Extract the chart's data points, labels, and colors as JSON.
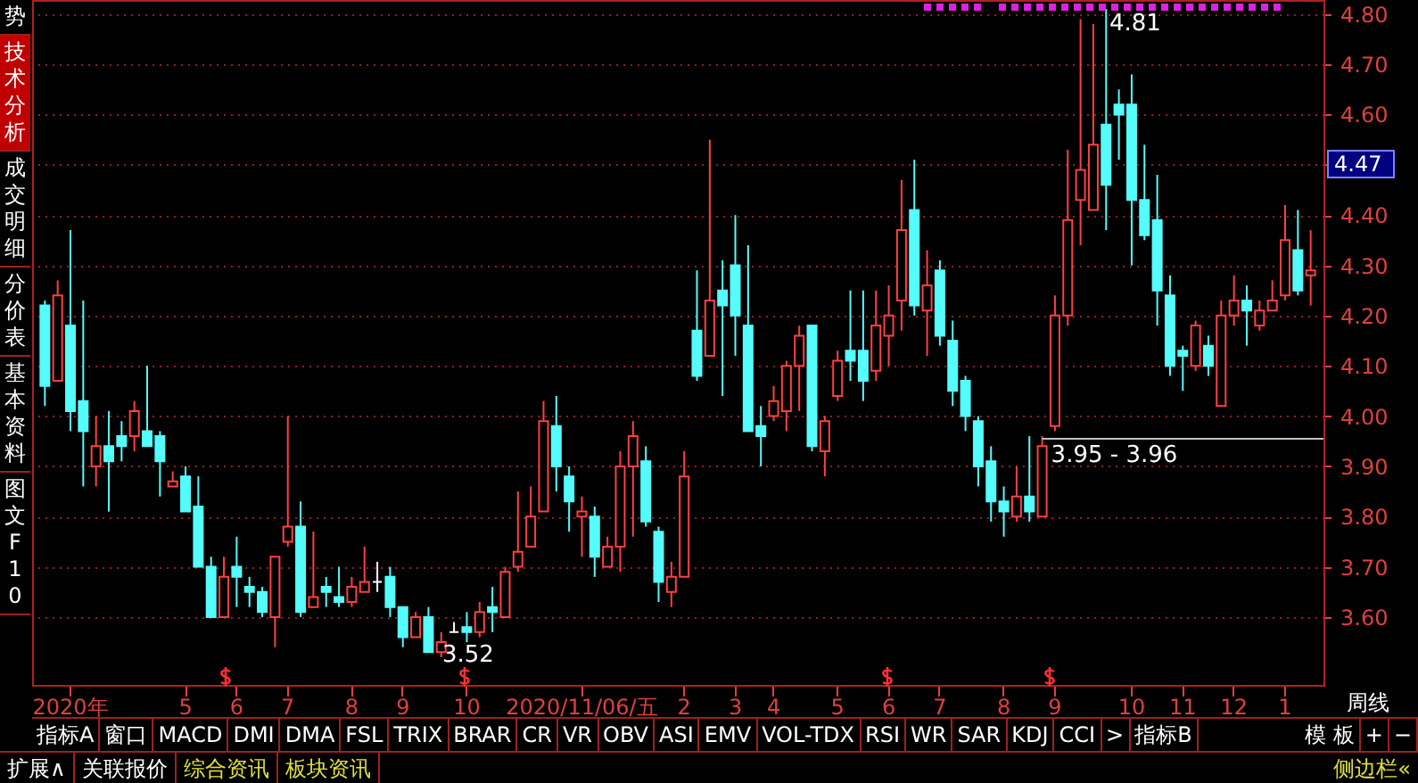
{
  "chart_data": {
    "type": "candlestick",
    "categories": [
      null,
      null,
      "2020年",
      null,
      null,
      null,
      null,
      null,
      null,
      null,
      null,
      "5",
      null,
      null,
      null,
      "6",
      null,
      null,
      null,
      "7",
      null,
      null,
      null,
      null,
      "8",
      null,
      null,
      null,
      "9",
      null,
      null,
      null,
      null,
      "10",
      null,
      null,
      null,
      null,
      null,
      null,
      null,
      null,
      "2020/11/06/五",
      null,
      null,
      null,
      null,
      null,
      null,
      null,
      "2",
      null,
      null,
      null,
      "3",
      null,
      null,
      "4",
      null,
      null,
      null,
      null,
      "5",
      null,
      null,
      null,
      "6",
      null,
      null,
      null,
      "7",
      null,
      null,
      null,
      null,
      "8",
      null,
      null,
      null,
      "9",
      null,
      null,
      null,
      null,
      null,
      "10",
      null,
      null,
      null,
      "11",
      null,
      null,
      null,
      "12",
      null,
      null,
      null,
      "1",
      null,
      null
    ],
    "ohlc": [
      [
        4.22,
        4.23,
        4.02,
        4.06
      ],
      [
        4.07,
        4.27,
        4.07,
        4.24
      ],
      [
        4.18,
        4.37,
        3.97,
        4.01
      ],
      [
        4.03,
        4.23,
        3.86,
        3.97
      ],
      [
        3.9,
        4.0,
        3.86,
        3.94
      ],
      [
        3.94,
        4.01,
        3.81,
        3.91
      ],
      [
        3.96,
        3.99,
        3.91,
        3.94
      ],
      [
        3.96,
        4.03,
        3.93,
        4.01
      ],
      [
        3.97,
        4.1,
        3.94,
        3.94
      ],
      [
        3.96,
        3.97,
        3.84,
        3.91
      ],
      [
        3.86,
        3.89,
        3.86,
        3.87
      ],
      [
        3.88,
        3.9,
        3.81,
        3.81
      ],
      [
        3.82,
        3.88,
        3.7,
        3.7
      ],
      [
        3.7,
        3.72,
        3.6,
        3.6
      ],
      [
        3.6,
        3.72,
        3.6,
        3.68
      ],
      [
        3.7,
        3.76,
        3.62,
        3.68
      ],
      [
        3.66,
        3.68,
        3.62,
        3.65
      ],
      [
        3.65,
        3.66,
        3.6,
        3.61
      ],
      [
        3.6,
        3.72,
        3.54,
        3.72
      ],
      [
        3.75,
        4.0,
        3.74,
        3.78
      ],
      [
        3.78,
        3.83,
        3.6,
        3.61
      ],
      [
        3.62,
        3.77,
        3.62,
        3.64
      ],
      [
        3.66,
        3.68,
        3.62,
        3.65
      ],
      [
        3.64,
        3.7,
        3.62,
        3.63
      ],
      [
        3.63,
        3.68,
        3.62,
        3.66
      ],
      [
        3.65,
        3.74,
        3.65,
        3.67
      ],
      [
        3.67,
        3.71,
        3.65,
        3.67
      ],
      [
        3.68,
        3.7,
        3.6,
        3.62
      ],
      [
        3.62,
        3.62,
        3.54,
        3.56
      ],
      [
        3.56,
        3.61,
        3.56,
        3.6
      ],
      [
        3.6,
        3.62,
        3.53,
        3.53
      ],
      [
        3.53,
        3.57,
        3.52,
        3.55
      ],
      [
        3.57,
        3.59,
        3.57,
        3.57
      ],
      [
        3.58,
        3.61,
        3.55,
        3.57
      ],
      [
        3.57,
        3.63,
        3.56,
        3.61
      ],
      [
        3.62,
        3.66,
        3.57,
        3.61
      ],
      [
        3.6,
        3.7,
        3.6,
        3.69
      ],
      [
        3.7,
        3.85,
        3.69,
        3.73
      ],
      [
        3.74,
        3.86,
        3.74,
        3.8
      ],
      [
        3.81,
        4.03,
        3.81,
        3.99
      ],
      [
        3.98,
        4.04,
        3.85,
        3.9
      ],
      [
        3.88,
        3.9,
        3.77,
        3.83
      ],
      [
        3.8,
        3.84,
        3.72,
        3.81
      ],
      [
        3.8,
        3.82,
        3.68,
        3.72
      ],
      [
        3.7,
        3.76,
        3.7,
        3.74
      ],
      [
        3.74,
        3.93,
        3.69,
        3.9
      ],
      [
        3.9,
        3.99,
        3.76,
        3.96
      ],
      [
        3.91,
        3.94,
        3.78,
        3.79
      ],
      [
        3.77,
        3.78,
        3.63,
        3.67
      ],
      [
        3.65,
        3.71,
        3.62,
        3.68
      ],
      [
        3.68,
        3.93,
        3.68,
        3.88
      ],
      [
        4.17,
        4.29,
        4.07,
        4.08
      ],
      [
        4.12,
        4.55,
        4.12,
        4.23
      ],
      [
        4.25,
        4.31,
        4.04,
        4.22
      ],
      [
        4.3,
        4.4,
        4.12,
        4.2
      ],
      [
        4.18,
        4.34,
        3.97,
        3.97
      ],
      [
        3.98,
        4.02,
        3.9,
        3.96
      ],
      [
        4.0,
        4.06,
        3.99,
        4.03
      ],
      [
        4.01,
        4.11,
        3.97,
        4.1
      ],
      [
        4.1,
        4.18,
        4.01,
        4.16
      ],
      [
        4.18,
        4.18,
        3.93,
        3.94
      ],
      [
        3.93,
        4.0,
        3.88,
        3.99
      ],
      [
        4.04,
        4.13,
        4.03,
        4.11
      ],
      [
        4.13,
        4.25,
        4.07,
        4.11
      ],
      [
        4.13,
        4.25,
        4.03,
        4.07
      ],
      [
        4.09,
        4.25,
        4.07,
        4.18
      ],
      [
        4.16,
        4.26,
        4.1,
        4.2
      ],
      [
        4.23,
        4.47,
        4.17,
        4.37
      ],
      [
        4.41,
        4.51,
        4.2,
        4.22
      ],
      [
        4.21,
        4.33,
        4.12,
        4.26
      ],
      [
        4.29,
        4.31,
        4.14,
        4.16
      ],
      [
        4.15,
        4.19,
        4.02,
        4.05
      ],
      [
        4.07,
        4.08,
        3.97,
        4.0
      ],
      [
        3.99,
        4.0,
        3.86,
        3.9
      ],
      [
        3.91,
        3.94,
        3.79,
        3.83
      ],
      [
        3.83,
        3.86,
        3.76,
        3.81
      ],
      [
        3.8,
        3.9,
        3.79,
        3.84
      ],
      [
        3.84,
        3.96,
        3.79,
        3.81
      ],
      [
        3.8,
        3.96,
        3.8,
        3.94
      ],
      [
        3.98,
        4.24,
        3.97,
        4.2
      ],
      [
        4.2,
        4.53,
        4.18,
        4.39
      ],
      [
        4.43,
        4.79,
        4.34,
        4.49
      ],
      [
        4.41,
        4.78,
        4.41,
        4.54
      ],
      [
        4.58,
        4.81,
        4.37,
        4.46
      ],
      [
        4.62,
        4.65,
        4.51,
        4.6
      ],
      [
        4.62,
        4.68,
        4.3,
        4.43
      ],
      [
        4.43,
        4.54,
        4.35,
        4.36
      ],
      [
        4.39,
        4.48,
        4.18,
        4.25
      ],
      [
        4.24,
        4.28,
        4.08,
        4.1
      ],
      [
        4.13,
        4.14,
        4.05,
        4.12
      ],
      [
        4.1,
        4.19,
        4.09,
        4.18
      ],
      [
        4.14,
        4.16,
        4.08,
        4.1
      ],
      [
        4.02,
        4.23,
        4.02,
        4.2
      ],
      [
        4.2,
        4.28,
        4.18,
        4.23
      ],
      [
        4.23,
        4.26,
        4.14,
        4.21
      ],
      [
        4.18,
        4.23,
        4.17,
        4.21
      ],
      [
        4.21,
        4.27,
        4.21,
        4.23
      ],
      [
        4.24,
        4.42,
        4.23,
        4.35
      ],
      [
        4.33,
        4.41,
        4.24,
        4.25
      ],
      [
        4.28,
        4.37,
        4.22,
        4.29
      ]
    ],
    "colors": [
      "#54fcfc",
      "#ff4040",
      "#54fcfc",
      "#54fcfc",
      "#ff4040",
      "#54fcfc",
      "#54fcfc",
      "#ff4040",
      "#54fcfc",
      "#54fcfc",
      "#ff4040",
      "#54fcfc",
      "#54fcfc",
      "#54fcfc",
      "#ff4040",
      "#54fcfc",
      "#54fcfc",
      "#54fcfc",
      "#ff4040",
      "#ff4040",
      "#54fcfc",
      "#ff4040",
      "#54fcfc",
      "#54fcfc",
      "#ff4040",
      "#ff4040",
      "#ffffff",
      "#54fcfc",
      "#54fcfc",
      "#ff4040",
      "#54fcfc",
      "#ff4040",
      "#ffffff",
      "#54fcfc",
      "#ff4040",
      "#54fcfc",
      "#ff4040",
      "#ff4040",
      "#ff4040",
      "#ff4040",
      "#54fcfc",
      "#54fcfc",
      "#ff4040",
      "#54fcfc",
      "#ff4040",
      "#ff4040",
      "#ff4040",
      "#54fcfc",
      "#54fcfc",
      "#ff4040",
      "#ff4040",
      "#54fcfc",
      "#ff4040",
      "#54fcfc",
      "#54fcfc",
      "#54fcfc",
      "#54fcfc",
      "#ff4040",
      "#ff4040",
      "#ff4040",
      "#54fcfc",
      "#ff4040",
      "#ff4040",
      "#54fcfc",
      "#54fcfc",
      "#ff4040",
      "#ff4040",
      "#ff4040",
      "#54fcfc",
      "#ff4040",
      "#54fcfc",
      "#54fcfc",
      "#54fcfc",
      "#54fcfc",
      "#54fcfc",
      "#54fcfc",
      "#ff4040",
      "#54fcfc",
      "#ff4040",
      "#ff4040",
      "#ff4040",
      "#ff4040",
      "#ff4040",
      "#54fcfc",
      "#54fcfc",
      "#54fcfc",
      "#54fcfc",
      "#54fcfc",
      "#54fcfc",
      "#54fcfc",
      "#ff4040",
      "#54fcfc",
      "#ff4040",
      "#ff4040",
      "#54fcfc",
      "#ff4040",
      "#ff4040",
      "#ff4040",
      "#54fcfc",
      "#ff4040"
    ],
    "ylim": [
      3.465,
      4.828
    ],
    "yticks": [
      {
        "value": 3.6,
        "label": "3.60"
      },
      {
        "value": 3.7,
        "label": "3.70"
      },
      {
        "value": 3.8,
        "label": "3.80"
      },
      {
        "value": 3.9,
        "label": "3.90"
      },
      {
        "value": 4.0,
        "label": "4.00"
      },
      {
        "value": 4.1,
        "label": "4.10"
      },
      {
        "value": 4.2,
        "label": "4.20"
      },
      {
        "value": 4.3,
        "label": "4.30"
      },
      {
        "value": 4.4,
        "label": "4.40"
      },
      {
        "value": 4.5,
        "label": null
      },
      {
        "value": 4.6,
        "label": "4.60"
      },
      {
        "value": 4.7,
        "label": "4.70"
      },
      {
        "value": 4.8,
        "label": "4.80"
      }
    ],
    "grid": "y",
    "ref_lines": [
      {
        "axis": "y",
        "value": 3.955,
        "label": "3.95 - 3.96",
        "color": "#c0c0c0"
      }
    ],
    "annotations": [
      "4.81",
      "3.52",
      "4.47",
      "势",
      "技术分析",
      "成交明细",
      "分价表",
      "基本资料",
      "图文F10",
      "周线",
      "指标A",
      "窗口",
      "MACD",
      "DMI",
      "DMA",
      "FSL",
      "TRIX",
      "BRAR",
      "CR",
      "VR",
      "OBV",
      "ASI",
      "EMV",
      "VOL-TDX",
      "RSI",
      "WR",
      "SAR",
      "KDJ",
      "CCI",
      ">",
      "指标B",
      "模 板",
      "+",
      "−",
      "扩展∧",
      "关联报价",
      "综合资讯",
      "板块资讯",
      "侧边栏«"
    ]
  }
}
